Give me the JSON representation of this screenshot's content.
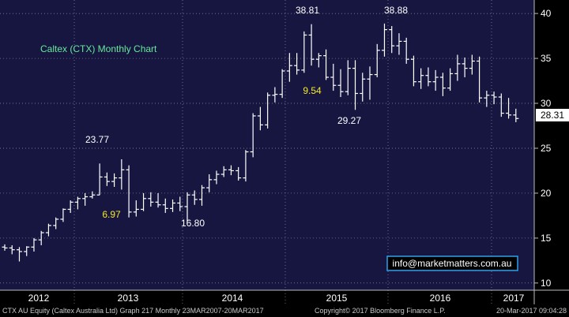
{
  "chart_data": {
    "type": "ohlc",
    "title": "Caltex (CTX) Monthly Chart",
    "ylim": [
      9.2,
      41.5
    ],
    "y_ticks": [
      10,
      15,
      20,
      25,
      30,
      35,
      40
    ],
    "x_year_labels": [
      "2012",
      "2013",
      "2014",
      "2015",
      "2016",
      "2017"
    ],
    "last_price_label": "28.31",
    "watermark": "info@marketmatters.com.au",
    "annotations": [
      {
        "text": "23.77",
        "color": "white"
      },
      {
        "text": "6.97",
        "color": "yellow"
      },
      {
        "text": "16.80",
        "color": "white"
      },
      {
        "text": "38.81",
        "color": "white"
      },
      {
        "text": "9.54",
        "color": "yellow"
      },
      {
        "text": "29.27",
        "color": "white"
      },
      {
        "text": "38.88",
        "color": "white"
      }
    ],
    "series": [
      {
        "values": [
          [
            14.0,
            14.3,
            13.6,
            13.9
          ],
          [
            13.9,
            14.2,
            13.2,
            13.7
          ],
          [
            13.7,
            14.0,
            12.4,
            13.5
          ],
          [
            13.5,
            14.1,
            13.0,
            14.0
          ],
          [
            14.0,
            15.0,
            13.5,
            14.8
          ],
          [
            14.8,
            15.8,
            14.2,
            15.6
          ],
          [
            15.6,
            16.6,
            15.2,
            16.4
          ],
          [
            16.4,
            17.3,
            16.0,
            17.1
          ],
          [
            17.1,
            18.3,
            16.8,
            18.2
          ],
          [
            18.2,
            19.2,
            17.8,
            19.0
          ],
          [
            19.0,
            19.6,
            18.2,
            19.4
          ],
          [
            19.4,
            20.0,
            18.6,
            19.6
          ],
          [
            19.6,
            20.2,
            19.4,
            19.8
          ],
          [
            19.8,
            23.3,
            19.8,
            21.8
          ],
          [
            21.8,
            22.3,
            20.8,
            21.3
          ],
          [
            21.3,
            22.2,
            20.7,
            21.7
          ],
          [
            21.7,
            23.77,
            20.4,
            22.6
          ],
          [
            22.6,
            23.1,
            17.3,
            17.9
          ],
          [
            17.9,
            19.2,
            17.4,
            18.2
          ],
          [
            18.2,
            20.0,
            18.0,
            19.4
          ],
          [
            19.4,
            20.1,
            18.5,
            19.0
          ],
          [
            19.0,
            20.0,
            18.4,
            18.7
          ],
          [
            18.7,
            19.4,
            17.8,
            18.3
          ],
          [
            18.3,
            19.3,
            17.9,
            18.9
          ],
          [
            18.9,
            19.6,
            18.0,
            18.5
          ],
          [
            18.5,
            20.1,
            16.8,
            19.8
          ],
          [
            19.8,
            20.3,
            18.7,
            19.3
          ],
          [
            19.3,
            20.9,
            18.6,
            20.6
          ],
          [
            20.6,
            22.1,
            20.1,
            21.5
          ],
          [
            21.5,
            22.5,
            21.0,
            22.1
          ],
          [
            22.1,
            23.0,
            21.8,
            22.6
          ],
          [
            22.6,
            23.1,
            22.0,
            22.5
          ],
          [
            22.5,
            22.9,
            21.4,
            21.7
          ],
          [
            21.7,
            24.8,
            21.3,
            24.6
          ],
          [
            24.6,
            28.9,
            24.0,
            28.6
          ],
          [
            28.6,
            29.6,
            27.0,
            27.6
          ],
          [
            27.6,
            31.2,
            27.2,
            30.9
          ],
          [
            30.9,
            31.8,
            30.1,
            31.0
          ],
          [
            31.0,
            33.8,
            30.6,
            33.6
          ],
          [
            33.6,
            35.6,
            32.4,
            34.2
          ],
          [
            34.2,
            35.6,
            33.2,
            33.7
          ],
          [
            33.7,
            38.0,
            33.4,
            37.6
          ],
          [
            37.6,
            38.81,
            34.2,
            34.9
          ],
          [
            34.9,
            35.6,
            34.0,
            35.3
          ],
          [
            35.3,
            36.0,
            32.6,
            32.9
          ],
          [
            32.9,
            34.4,
            31.4,
            32.0
          ],
          [
            32.0,
            33.8,
            30.7,
            31.3
          ],
          [
            31.3,
            34.8,
            30.9,
            33.9
          ],
          [
            33.9,
            34.8,
            29.27,
            31.1
          ],
          [
            31.1,
            33.4,
            30.2,
            32.7
          ],
          [
            32.7,
            34.1,
            30.4,
            33.2
          ],
          [
            33.2,
            36.6,
            32.9,
            35.9
          ],
          [
            35.9,
            38.88,
            35.2,
            38.2
          ],
          [
            38.2,
            38.6,
            35.6,
            36.4
          ],
          [
            36.4,
            37.8,
            35.4,
            36.9
          ],
          [
            36.9,
            37.3,
            34.4,
            34.9
          ],
          [
            34.9,
            35.3,
            31.9,
            32.4
          ],
          [
            32.4,
            33.9,
            31.6,
            33.1
          ],
          [
            33.1,
            34.0,
            31.9,
            32.4
          ],
          [
            32.4,
            33.7,
            31.4,
            32.9
          ],
          [
            32.9,
            33.4,
            30.8,
            31.7
          ],
          [
            31.7,
            33.9,
            31.4,
            33.3
          ],
          [
            33.3,
            35.4,
            32.5,
            34.4
          ],
          [
            34.4,
            35.1,
            32.9,
            33.9
          ],
          [
            33.9,
            35.4,
            33.2,
            34.7
          ],
          [
            34.7,
            35.2,
            30.1,
            30.6
          ],
          [
            30.6,
            31.4,
            29.6,
            30.9
          ],
          [
            30.9,
            31.3,
            29.9,
            30.7
          ],
          [
            30.7,
            31.1,
            28.5,
            28.9
          ],
          [
            28.9,
            30.6,
            28.3,
            28.7
          ],
          [
            28.7,
            29.4,
            27.9,
            28.31
          ]
        ]
      }
    ]
  }
}
